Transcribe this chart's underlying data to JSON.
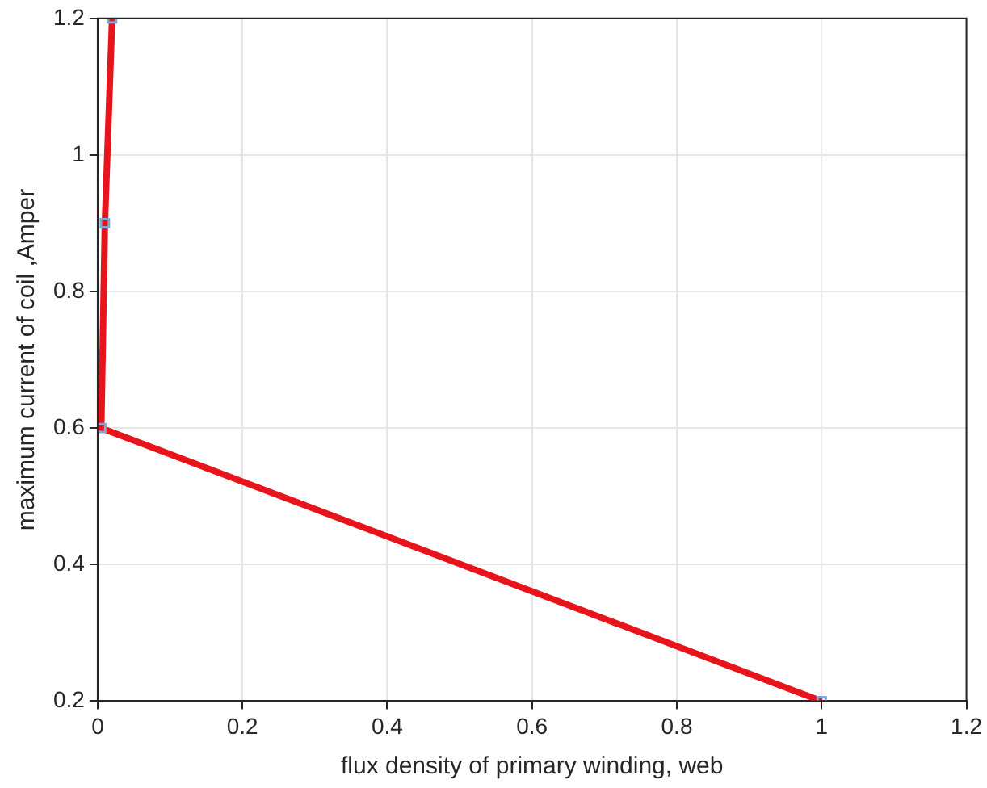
{
  "chart_data": {
    "type": "line",
    "xlabel": "flux density of primary winding, web",
    "ylabel": "maximum current of coil ,Amper",
    "series": [
      {
        "color": "#e8141c",
        "x": [
          0.02,
          0.01,
          0.005,
          1.0
        ],
        "values": [
          1.2,
          0.9,
          0.6,
          0.2
        ]
      }
    ],
    "xlim": [
      0,
      1.2
    ],
    "xticks": [
      0,
      0.2,
      0.4,
      0.6,
      0.8,
      1,
      1.2
    ],
    "ylim": [
      0.2,
      1.2
    ],
    "yticks": [
      0.2,
      0.4,
      0.6,
      0.8,
      1,
      1.2
    ],
    "grid": true,
    "legend": false,
    "marker": "square",
    "line_style": "solid"
  }
}
